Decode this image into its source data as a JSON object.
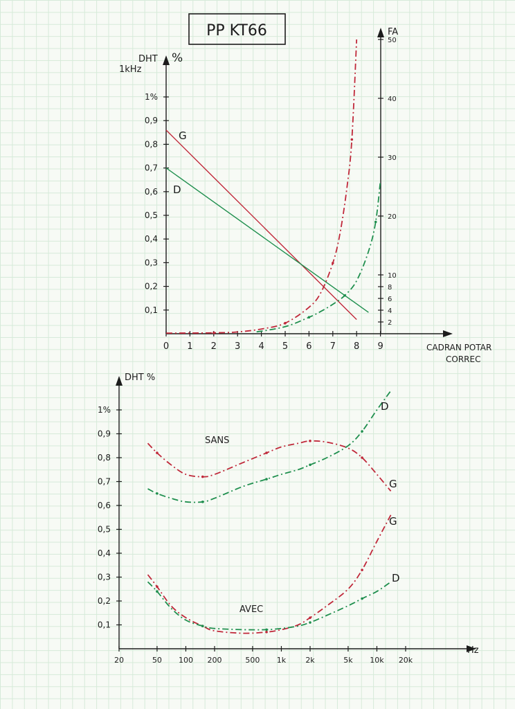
{
  "title": "PP KT66",
  "colors": {
    "red": "#c0283a",
    "green": "#1f8f4e",
    "ink": "#1c1c1c"
  },
  "chart_data": [
    {
      "type": "line",
      "ylabel_left": [
        "DHT",
        "1kHz"
      ],
      "ylabel_left_unit": "%",
      "ylabel_right": "FA",
      "xlabel": [
        "CADRAN POTAR",
        "CORREC"
      ],
      "x_ticks": [
        "0",
        "1",
        "2",
        "3",
        "4",
        "5",
        "6",
        "7",
        "8",
        "9"
      ],
      "y_ticks_left": [
        "0,1",
        "0,2",
        "0,3",
        "0,4",
        "0,5",
        "0,6",
        "0,7",
        "0,8",
        "0,9",
        "1%"
      ],
      "y_ticks_right": [
        "2",
        "4",
        "6",
        "8",
        "10",
        "20",
        "30",
        "40",
        "50"
      ],
      "xlim": [
        0,
        9
      ],
      "ylim_left": [
        0,
        1
      ],
      "ylim_right": [
        0,
        50
      ],
      "series": [
        {
          "name": "G",
          "color": "red",
          "style": "solid",
          "axis": "left",
          "points": [
            [
              0,
              0.86
            ],
            [
              8,
              0.06
            ]
          ]
        },
        {
          "name": "D",
          "color": "green",
          "style": "solid",
          "axis": "left",
          "points": [
            [
              0,
              0.7
            ],
            [
              8.5,
              0.09
            ]
          ]
        },
        {
          "color": "red",
          "style": "dashed",
          "axis": "right",
          "points": [
            [
              0,
              0.1
            ],
            [
              1,
              0.12
            ],
            [
              2,
              0.15
            ],
            [
              3,
              0.3
            ],
            [
              4,
              0.8
            ],
            [
              5,
              1.8
            ],
            [
              6,
              4.5
            ],
            [
              6.5,
              7
            ],
            [
              7,
              12
            ],
            [
              7.3,
              17
            ],
            [
              7.6,
              25
            ],
            [
              7.8,
              33
            ],
            [
              8,
              50
            ]
          ]
        },
        {
          "color": "green",
          "style": "dashed",
          "axis": "right",
          "points": [
            [
              3.8,
              0.3
            ],
            [
              5,
              1.2
            ],
            [
              6,
              2.8
            ],
            [
              6.5,
              3.8
            ],
            [
              7,
              5
            ],
            [
              7.5,
              6.5
            ],
            [
              8,
              9
            ],
            [
              8.5,
              14
            ],
            [
              8.8,
              19
            ],
            [
              9,
              26
            ]
          ]
        }
      ],
      "labels": [
        "G",
        "D"
      ]
    },
    {
      "type": "line",
      "ylabel": "DHT %",
      "xlabel": "Hz",
      "x_scale": "log",
      "x_ticks": [
        "20",
        "50",
        "100",
        "200",
        "500",
        "1k",
        "2k",
        "5k",
        "10k",
        "20k"
      ],
      "x_tick_labels": [
        "20",
        "50",
        "100",
        "200",
        "500",
        "1k",
        "2k",
        "5k",
        "10k",
        "20k"
      ],
      "y_ticks": [
        "0,1",
        "0,2",
        "0,3",
        "0,4",
        "0,5",
        "0,6",
        "0,7",
        "0,8",
        "0,9",
        "1%"
      ],
      "xlim": [
        20,
        20000
      ],
      "ylim": [
        0,
        1
      ],
      "annotations": [
        "SANS",
        "AVEC"
      ],
      "series": [
        {
          "name": "G",
          "group": "SANS",
          "color": "red",
          "x": [
            40,
            50,
            70,
            100,
            150,
            200,
            400,
            700,
            1000,
            1500,
            2000,
            3000,
            5000,
            7000,
            10000,
            14000
          ],
          "y": [
            0.86,
            0.82,
            0.77,
            0.73,
            0.72,
            0.73,
            0.78,
            0.82,
            0.845,
            0.86,
            0.87,
            0.865,
            0.84,
            0.8,
            0.73,
            0.66
          ]
        },
        {
          "name": "D",
          "group": "SANS",
          "color": "green",
          "x": [
            40,
            50,
            70,
            100,
            150,
            200,
            400,
            700,
            1000,
            1500,
            2000,
            3000,
            5000,
            7000,
            10000,
            14000
          ],
          "y": [
            0.67,
            0.65,
            0.63,
            0.615,
            0.615,
            0.63,
            0.68,
            0.71,
            0.73,
            0.75,
            0.77,
            0.8,
            0.85,
            0.91,
            1.0,
            1.08
          ]
        },
        {
          "name": "G",
          "group": "AVEC",
          "color": "red",
          "x": [
            40,
            50,
            70,
            100,
            150,
            200,
            400,
            700,
            1000,
            1500,
            2000,
            3000,
            5000,
            7000,
            10000,
            14000
          ],
          "y": [
            0.31,
            0.26,
            0.18,
            0.13,
            0.095,
            0.075,
            0.065,
            0.07,
            0.08,
            0.1,
            0.13,
            0.18,
            0.25,
            0.33,
            0.45,
            0.56
          ]
        },
        {
          "name": "D",
          "group": "AVEC",
          "color": "green",
          "x": [
            40,
            50,
            70,
            100,
            150,
            200,
            400,
            700,
            1000,
            1500,
            2000,
            3000,
            5000,
            7000,
            10000,
            14000
          ],
          "y": [
            0.28,
            0.24,
            0.17,
            0.12,
            0.095,
            0.085,
            0.08,
            0.08,
            0.085,
            0.095,
            0.11,
            0.14,
            0.18,
            0.21,
            0.24,
            0.28
          ]
        }
      ],
      "labels": [
        "G",
        "D",
        "G",
        "D"
      ]
    }
  ]
}
